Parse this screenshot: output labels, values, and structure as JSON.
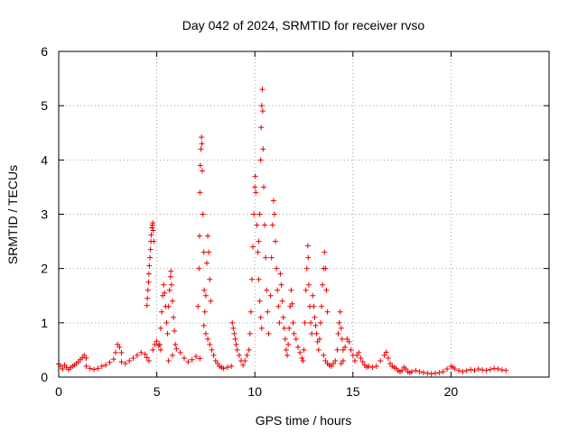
{
  "chart_data": {
    "type": "scatter",
    "title": "Day 042 of 2024, SRMTID for receiver rvso",
    "xlabel": "GPS time / hours",
    "ylabel": "SRMTID / TECUs",
    "xlim": [
      0,
      25
    ],
    "ylim": [
      0,
      6
    ],
    "xticks": [
      0,
      5,
      10,
      15,
      20
    ],
    "xtick_labels": [
      "0",
      "5",
      "10",
      "15",
      "20"
    ],
    "yticks": [
      0,
      1,
      2,
      3,
      4,
      5,
      6
    ],
    "ytick_labels": [
      "0",
      "1",
      "2",
      "3",
      "4",
      "5",
      "6"
    ],
    "grid": true,
    "marker": "plus",
    "color": "#ee0000",
    "series": [
      {
        "name": "SRMTID",
        "points": [
          [
            0.0,
            0.24
          ],
          [
            0.1,
            0.2
          ],
          [
            0.2,
            0.15
          ],
          [
            0.3,
            0.22
          ],
          [
            0.4,
            0.18
          ],
          [
            0.5,
            0.14
          ],
          [
            0.6,
            0.17
          ],
          [
            0.7,
            0.2
          ],
          [
            0.8,
            0.22
          ],
          [
            0.9,
            0.25
          ],
          [
            1.0,
            0.28
          ],
          [
            1.1,
            0.32
          ],
          [
            1.2,
            0.36
          ],
          [
            1.3,
            0.4
          ],
          [
            1.4,
            0.35
          ],
          [
            1.4,
            0.2
          ],
          [
            1.6,
            0.16
          ],
          [
            1.8,
            0.14
          ],
          [
            2.0,
            0.16
          ],
          [
            2.2,
            0.2
          ],
          [
            2.4,
            0.22
          ],
          [
            2.6,
            0.27
          ],
          [
            2.8,
            0.33
          ],
          [
            2.9,
            0.45
          ],
          [
            3.0,
            0.6
          ],
          [
            3.1,
            0.55
          ],
          [
            3.2,
            0.45
          ],
          [
            3.2,
            0.28
          ],
          [
            3.4,
            0.25
          ],
          [
            3.6,
            0.3
          ],
          [
            3.8,
            0.35
          ],
          [
            4.0,
            0.4
          ],
          [
            4.2,
            0.45
          ],
          [
            4.4,
            0.42
          ],
          [
            4.5,
            0.36
          ],
          [
            4.6,
            0.3
          ],
          [
            4.5,
            1.32
          ],
          [
            4.52,
            1.45
          ],
          [
            4.55,
            1.6
          ],
          [
            4.58,
            1.75
          ],
          [
            4.6,
            1.9
          ],
          [
            4.62,
            2.05
          ],
          [
            4.65,
            2.2
          ],
          [
            4.68,
            2.35
          ],
          [
            4.7,
            2.5
          ],
          [
            4.72,
            2.62
          ],
          [
            4.75,
            2.75
          ],
          [
            4.78,
            2.8
          ],
          [
            4.8,
            2.84
          ],
          [
            4.82,
            2.7
          ],
          [
            4.85,
            2.5
          ],
          [
            4.8,
            0.5
          ],
          [
            4.9,
            0.6
          ],
          [
            5.0,
            0.66
          ],
          [
            5.1,
            0.58
          ],
          [
            5.2,
            0.5
          ],
          [
            5.15,
            0.6
          ],
          [
            5.2,
            0.9
          ],
          [
            5.25,
            1.2
          ],
          [
            5.3,
            1.5
          ],
          [
            5.35,
            1.7
          ],
          [
            5.4,
            1.55
          ],
          [
            5.45,
            1.3
          ],
          [
            5.5,
            1.0
          ],
          [
            5.55,
            0.8
          ],
          [
            5.6,
            1.3
          ],
          [
            5.65,
            1.6
          ],
          [
            5.7,
            1.85
          ],
          [
            5.72,
            1.95
          ],
          [
            5.75,
            1.7
          ],
          [
            5.8,
            1.4
          ],
          [
            5.85,
            1.1
          ],
          [
            5.9,
            0.85
          ],
          [
            5.95,
            0.6
          ],
          [
            5.6,
            0.3
          ],
          [
            5.8,
            0.4
          ],
          [
            6.0,
            0.52
          ],
          [
            6.2,
            0.45
          ],
          [
            6.4,
            0.35
          ],
          [
            6.6,
            0.28
          ],
          [
            6.8,
            0.32
          ],
          [
            7.0,
            0.38
          ],
          [
            7.2,
            0.34
          ],
          [
            7.1,
            1.3
          ],
          [
            7.15,
            2.0
          ],
          [
            7.18,
            2.6
          ],
          [
            7.2,
            3.4
          ],
          [
            7.22,
            3.9
          ],
          [
            7.25,
            4.2
          ],
          [
            7.28,
            4.42
          ],
          [
            7.3,
            4.3
          ],
          [
            7.32,
            3.8
          ],
          [
            7.35,
            3.0
          ],
          [
            7.4,
            2.3
          ],
          [
            7.42,
            1.6
          ],
          [
            7.45,
            1.2
          ],
          [
            7.5,
            1.5
          ],
          [
            7.55,
            2.1
          ],
          [
            7.6,
            2.6
          ],
          [
            7.65,
            2.3
          ],
          [
            7.7,
            1.8
          ],
          [
            7.75,
            1.4
          ],
          [
            7.4,
            0.95
          ],
          [
            7.5,
            0.8
          ],
          [
            7.6,
            0.7
          ],
          [
            7.7,
            0.6
          ],
          [
            7.8,
            0.5
          ],
          [
            7.9,
            0.4
          ],
          [
            8.0,
            0.3
          ],
          [
            8.1,
            0.25
          ],
          [
            8.2,
            0.2
          ],
          [
            8.3,
            0.18
          ],
          [
            8.4,
            0.16
          ],
          [
            8.6,
            0.18
          ],
          [
            8.8,
            0.2
          ],
          [
            8.85,
            1.0
          ],
          [
            8.9,
            0.9
          ],
          [
            8.95,
            0.8
          ],
          [
            9.0,
            0.7
          ],
          [
            9.05,
            0.6
          ],
          [
            9.1,
            0.5
          ],
          [
            9.2,
            0.4
          ],
          [
            9.3,
            0.3
          ],
          [
            9.4,
            0.22
          ],
          [
            9.5,
            0.3
          ],
          [
            9.6,
            0.4
          ],
          [
            9.7,
            0.5
          ],
          [
            9.75,
            0.8
          ],
          [
            9.8,
            1.2
          ],
          [
            9.85,
            1.8
          ],
          [
            9.9,
            2.4
          ],
          [
            9.95,
            3.0
          ],
          [
            10.0,
            3.5
          ],
          [
            10.02,
            3.7
          ],
          [
            10.05,
            3.4
          ],
          [
            10.1,
            2.8
          ],
          [
            10.15,
            2.3
          ],
          [
            10.2,
            1.8
          ],
          [
            10.25,
            1.4
          ],
          [
            10.3,
            1.1
          ],
          [
            10.35,
            0.9
          ],
          [
            10.2,
            2.5
          ],
          [
            10.25,
            3.0
          ],
          [
            10.3,
            4.0
          ],
          [
            10.32,
            4.6
          ],
          [
            10.35,
            5.0
          ],
          [
            10.38,
            5.3
          ],
          [
            10.4,
            4.9
          ],
          [
            10.42,
            4.2
          ],
          [
            10.45,
            3.5
          ],
          [
            10.5,
            2.8
          ],
          [
            10.55,
            2.2
          ],
          [
            10.6,
            1.6
          ],
          [
            10.65,
            1.2
          ],
          [
            10.7,
            0.8
          ],
          [
            10.8,
            1.5
          ],
          [
            10.85,
            2.2
          ],
          [
            10.9,
            2.8
          ],
          [
            10.95,
            3.25
          ],
          [
            11.0,
            3.0
          ],
          [
            11.05,
            2.5
          ],
          [
            11.1,
            2.0
          ],
          [
            11.15,
            1.6
          ],
          [
            11.2,
            1.3
          ],
          [
            11.25,
            1.0
          ],
          [
            11.3,
            1.9
          ],
          [
            11.35,
            1.7
          ],
          [
            11.4,
            1.4
          ],
          [
            11.45,
            1.1
          ],
          [
            11.5,
            0.9
          ],
          [
            11.55,
            0.7
          ],
          [
            11.6,
            0.5
          ],
          [
            11.65,
            0.4
          ],
          [
            11.7,
            0.6
          ],
          [
            11.75,
            0.9
          ],
          [
            11.8,
            1.3
          ],
          [
            11.85,
            1.6
          ],
          [
            11.9,
            1.35
          ],
          [
            11.95,
            1.0
          ],
          [
            12.0,
            0.8
          ],
          [
            12.1,
            0.7
          ],
          [
            12.2,
            0.55
          ],
          [
            12.3,
            0.45
          ],
          [
            12.4,
            0.35
          ],
          [
            12.45,
            0.3
          ],
          [
            12.5,
            0.5
          ],
          [
            12.55,
            1.0
          ],
          [
            12.6,
            1.6
          ],
          [
            12.65,
            2.0
          ],
          [
            12.7,
            2.42
          ],
          [
            12.72,
            2.2
          ],
          [
            12.75,
            1.7
          ],
          [
            12.8,
            1.3
          ],
          [
            12.85,
            1.0
          ],
          [
            12.9,
            0.8
          ],
          [
            12.95,
            1.5
          ],
          [
            13.0,
            1.3
          ],
          [
            13.05,
            1.1
          ],
          [
            13.1,
            0.95
          ],
          [
            13.15,
            0.8
          ],
          [
            13.2,
            0.65
          ],
          [
            13.25,
            0.5
          ],
          [
            13.3,
            0.7
          ],
          [
            13.35,
            1.0
          ],
          [
            13.4,
            1.3
          ],
          [
            13.45,
            1.7
          ],
          [
            13.5,
            2.0
          ],
          [
            13.55,
            2.3
          ],
          [
            13.6,
            2.0
          ],
          [
            13.65,
            1.6
          ],
          [
            13.7,
            1.2
          ],
          [
            13.5,
            0.4
          ],
          [
            13.6,
            0.3
          ],
          [
            13.7,
            0.25
          ],
          [
            13.8,
            0.22
          ],
          [
            13.9,
            0.2
          ],
          [
            14.0,
            0.25
          ],
          [
            14.1,
            0.3
          ],
          [
            14.2,
            0.5
          ],
          [
            14.25,
            0.8
          ],
          [
            14.3,
            1.0
          ],
          [
            14.35,
            1.2
          ],
          [
            14.4,
            0.9
          ],
          [
            14.45,
            0.7
          ],
          [
            14.5,
            0.5
          ],
          [
            14.4,
            0.25
          ],
          [
            14.5,
            0.3
          ],
          [
            14.6,
            0.55
          ],
          [
            14.7,
            0.7
          ],
          [
            14.8,
            0.65
          ],
          [
            14.9,
            0.5
          ],
          [
            15.0,
            0.4
          ],
          [
            15.1,
            0.3
          ],
          [
            15.2,
            0.4
          ],
          [
            15.3,
            0.45
          ],
          [
            15.4,
            0.35
          ],
          [
            15.5,
            0.28
          ],
          [
            15.6,
            0.22
          ],
          [
            15.7,
            0.18
          ],
          [
            15.8,
            0.2
          ],
          [
            16.0,
            0.18
          ],
          [
            16.2,
            0.2
          ],
          [
            16.4,
            0.3
          ],
          [
            16.6,
            0.4
          ],
          [
            16.7,
            0.46
          ],
          [
            16.8,
            0.35
          ],
          [
            16.9,
            0.25
          ],
          [
            17.0,
            0.2
          ],
          [
            17.1,
            0.18
          ],
          [
            17.2,
            0.16
          ],
          [
            17.3,
            0.12
          ],
          [
            17.4,
            0.1
          ],
          [
            17.5,
            0.12
          ],
          [
            17.6,
            0.18
          ],
          [
            17.7,
            0.15
          ],
          [
            17.8,
            0.1
          ],
          [
            17.9,
            0.08
          ],
          [
            18.0,
            0.1
          ],
          [
            18.2,
            0.12
          ],
          [
            18.4,
            0.1
          ],
          [
            18.6,
            0.08
          ],
          [
            18.8,
            0.07
          ],
          [
            19.0,
            0.06
          ],
          [
            19.2,
            0.07
          ],
          [
            19.4,
            0.08
          ],
          [
            19.6,
            0.1
          ],
          [
            19.8,
            0.15
          ],
          [
            20.0,
            0.2
          ],
          [
            20.1,
            0.18
          ],
          [
            20.2,
            0.15
          ],
          [
            20.4,
            0.12
          ],
          [
            20.6,
            0.1
          ],
          [
            20.8,
            0.12
          ],
          [
            21.0,
            0.14
          ],
          [
            21.2,
            0.12
          ],
          [
            21.4,
            0.15
          ],
          [
            21.6,
            0.13
          ],
          [
            21.8,
            0.12
          ],
          [
            22.0,
            0.14
          ],
          [
            22.2,
            0.16
          ],
          [
            22.4,
            0.15
          ],
          [
            22.6,
            0.13
          ],
          [
            22.8,
            0.12
          ]
        ]
      }
    ]
  }
}
